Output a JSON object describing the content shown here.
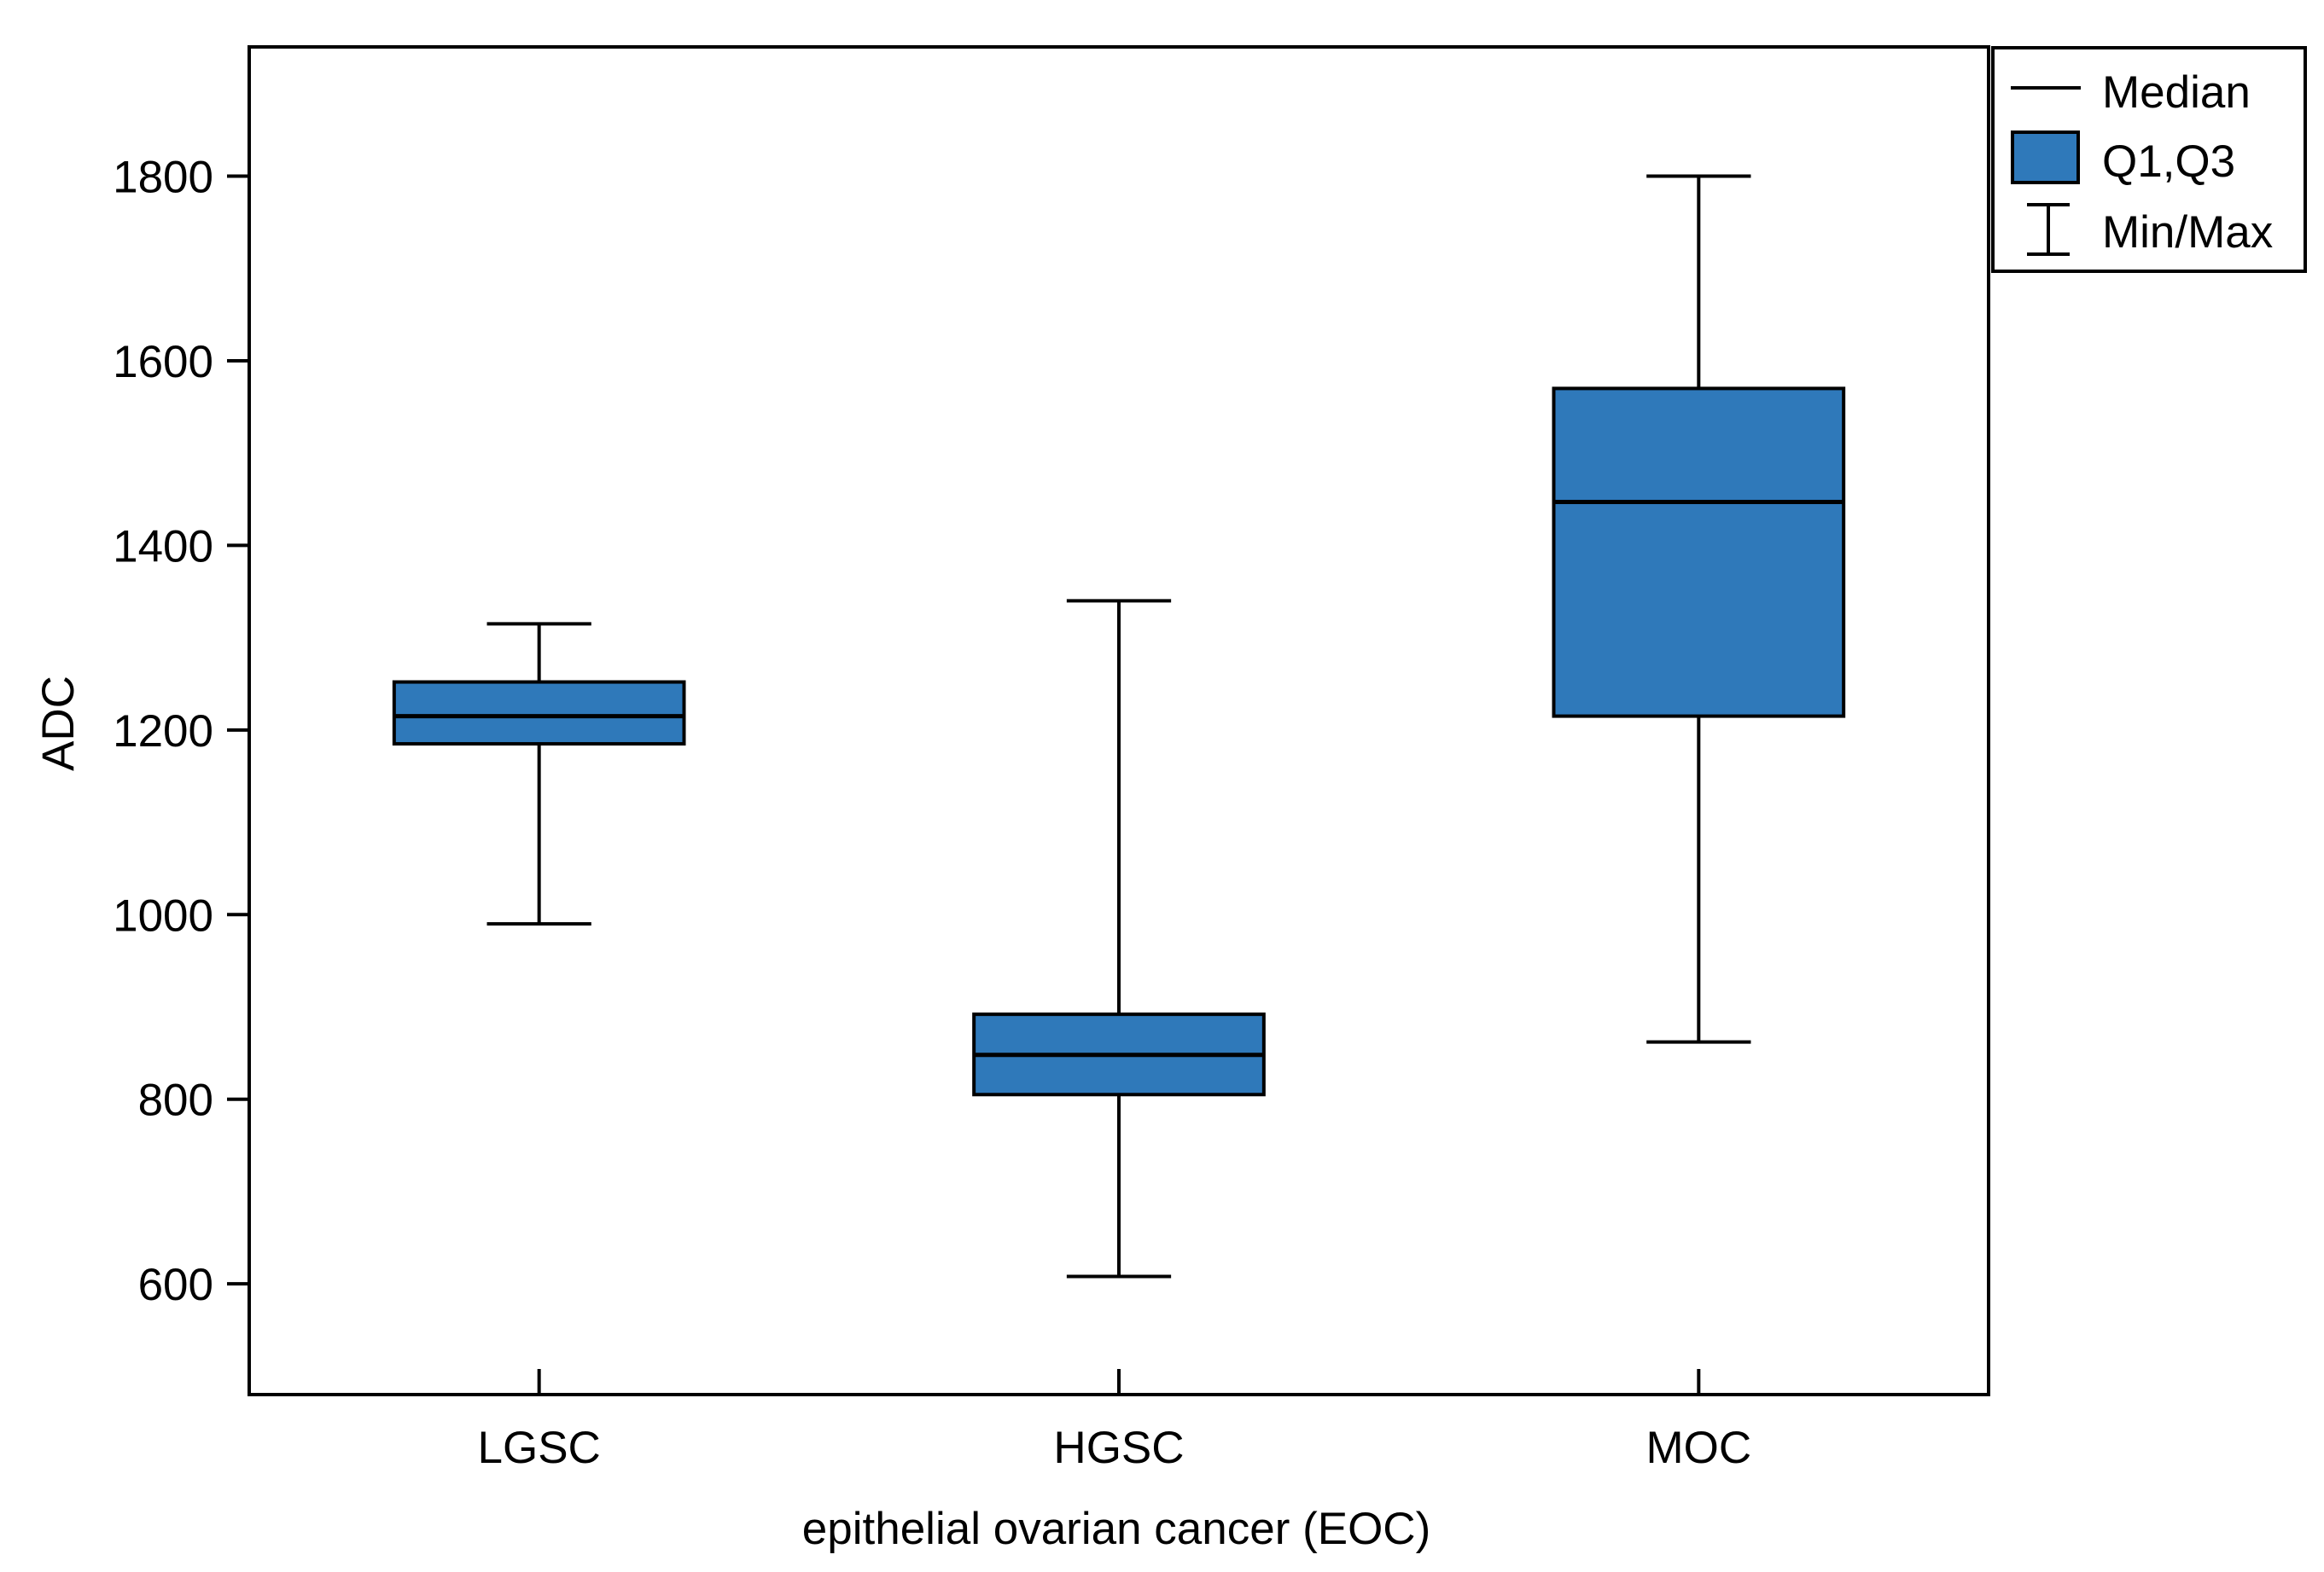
{
  "chart_data": {
    "type": "boxplot",
    "title": "",
    "xlabel": "epithelial ovarian cancer (EOC)",
    "ylabel": "ADC",
    "ylim": [
      480,
      1940
    ],
    "yticks": [
      600,
      800,
      1000,
      1200,
      1400,
      1600,
      1800
    ],
    "grid": false,
    "legend_position": "top-right",
    "categories": [
      "LGSC",
      "HGSC",
      "MOC"
    ],
    "series": [
      {
        "category": "LGSC",
        "min": 990,
        "q1": 1185,
        "median": 1215,
        "q3": 1252,
        "max": 1315
      },
      {
        "category": "HGSC",
        "min": 608,
        "q1": 805,
        "median": 848,
        "q3": 892,
        "max": 1340
      },
      {
        "category": "MOC",
        "min": 862,
        "q1": 1215,
        "median": 1447,
        "q3": 1570,
        "max": 1800
      }
    ],
    "legend": [
      {
        "label": "Median",
        "symbol": "line"
      },
      {
        "label": "Q1,Q3",
        "symbol": "box"
      },
      {
        "label": "Min/Max",
        "symbol": "whisker"
      }
    ],
    "colors": {
      "box_fill": "#2F79BA",
      "stroke": "#000000",
      "background": "#ffffff"
    }
  }
}
